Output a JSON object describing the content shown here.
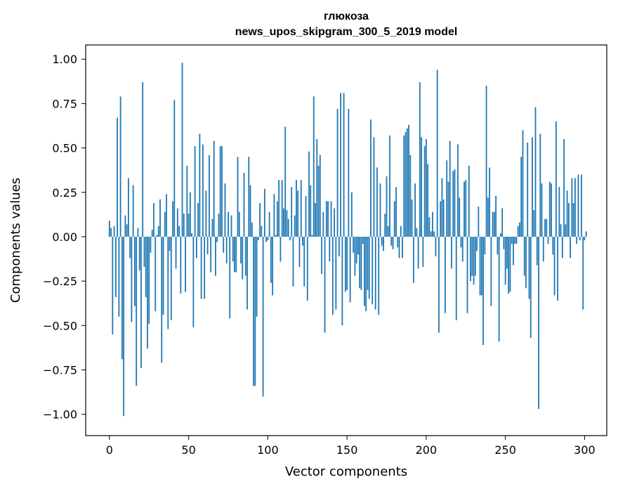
{
  "chart_data": {
    "type": "bar",
    "title": "глюкоза",
    "subtitle": "news_upos_skipgram_300_5_2019 model",
    "xlabel": "Vector components",
    "ylabel": "Components values",
    "xlim": [
      -15,
      314
    ],
    "ylim": [
      -1.12,
      1.08
    ],
    "xticks": [
      0,
      50,
      100,
      150,
      200,
      250,
      300
    ],
    "xtick_labels": [
      "0",
      "50",
      "100",
      "150",
      "200",
      "250",
      "300"
    ],
    "yticks": [
      -1.0,
      -0.75,
      -0.5,
      -0.25,
      0.0,
      0.25,
      0.5,
      0.75,
      1.0
    ],
    "ytick_labels": [
      "−1.00",
      "−0.75",
      "−0.50",
      "−0.25",
      "0.00",
      "0.25",
      "0.50",
      "0.75",
      "1.00"
    ],
    "grid": false,
    "bar_color": "#1f77b4",
    "values": [
      0.09,
      0.05,
      -0.55,
      0.06,
      -0.34,
      0.67,
      -0.45,
      0.79,
      -0.69,
      -1.01,
      0.12,
      0.07,
      0.33,
      -0.12,
      -0.48,
      0.29,
      -0.39,
      -0.84,
      0.05,
      -0.19,
      -0.74,
      0.87,
      -0.17,
      -0.34,
      -0.63,
      -0.49,
      -0.09,
      0.04,
      0.19,
      -0.42,
      0.01,
      0.06,
      0.21,
      -0.71,
      -0.44,
      0.14,
      0.24,
      -0.52,
      -0.08,
      -0.47,
      0.2,
      0.77,
      -0.18,
      0.16,
      0.06,
      -0.32,
      0.98,
      0.13,
      -0.31,
      0.4,
      0.13,
      0.25,
      0.02,
      -0.51,
      0.51,
      -0.12,
      0.19,
      0.58,
      -0.35,
      0.52,
      -0.35,
      0.26,
      -0.1,
      0.46,
      -0.2,
      0.1,
      0.54,
      -0.22,
      -0.03,
      0.13,
      0.51,
      0.51,
      -0.09,
      0.3,
      -0.15,
      0.14,
      -0.46,
      0.12,
      -0.14,
      -0.2,
      -0.2,
      0.45,
      0.14,
      -0.15,
      -0.24,
      0.36,
      -0.22,
      -0.41,
      0.45,
      0.29,
      0.08,
      -0.84,
      -0.84,
      -0.45,
      -0.02,
      0.19,
      0.06,
      -0.9,
      0.27,
      -0.03,
      -0.02,
      0.14,
      -0.26,
      -0.33,
      0.24,
      0.01,
      0.2,
      0.32,
      -0.14,
      0.32,
      0.16,
      0.62,
      0.15,
      0.1,
      -0.02,
      0.28,
      -0.28,
      0.12,
      0.32,
      0.26,
      -0.17,
      0.32,
      -0.05,
      -0.28,
      0.23,
      -0.36,
      0.48,
      0.29,
      0.01,
      0.79,
      0.19,
      0.55,
      0.4,
      0.46,
      -0.21,
      0.14,
      -0.54,
      0.2,
      0.2,
      -0.14,
      0.2,
      -0.44,
      0.16,
      -0.41,
      0.72,
      -0.11,
      0.81,
      -0.5,
      0.81,
      -0.31,
      -0.3,
      0.72,
      -0.37,
      0.25,
      -0.09,
      -0.22,
      -0.15,
      -0.1,
      -0.29,
      -0.3,
      -0.04,
      -0.39,
      -0.42,
      -0.3,
      -0.35,
      0.66,
      -0.38,
      0.56,
      -0.41,
      0.39,
      -0.44,
      0.3,
      -0.05,
      -0.08,
      0.13,
      0.34,
      0.06,
      0.57,
      -0.05,
      -0.07,
      0.2,
      0.28,
      -0.06,
      -0.12,
      0.06,
      -0.12,
      0.57,
      0.59,
      0.61,
      0.63,
      0.46,
      0.21,
      -0.26,
      0.3,
      0.05,
      -0.18,
      0.87,
      0.56,
      -0.17,
      0.51,
      0.55,
      0.41,
      0.11,
      0.03,
      0.14,
      0.03,
      -0.11,
      0.94,
      -0.54,
      0.2,
      0.33,
      0.21,
      -0.43,
      0.43,
      0.31,
      0.54,
      -0.18,
      0.37,
      0.38,
      -0.47,
      0.52,
      0.22,
      -0.06,
      -0.14,
      0.31,
      0.32,
      -0.43,
      0.4,
      -0.25,
      -0.22,
      -0.27,
      -0.22,
      -0.08,
      0.17,
      -0.33,
      -0.33,
      -0.61,
      -0.1,
      0.85,
      0.22,
      0.39,
      -0.39,
      0.14,
      0.14,
      0.23,
      -0.1,
      -0.59,
      0.02,
      0.16,
      -0.07,
      -0.27,
      -0.18,
      -0.32,
      -0.31,
      -0.04,
      -0.16,
      -0.04,
      -0.04,
      0.06,
      0.08,
      0.45,
      0.6,
      -0.22,
      -0.29,
      0.53,
      -0.35,
      -0.57,
      0.56,
      0.15,
      0.73,
      -0.16,
      -0.97,
      0.58,
      0.3,
      -0.14,
      0.1,
      0.1,
      -0.04,
      0.31,
      0.3,
      -0.1,
      -0.33,
      0.65,
      -0.36,
      0.28,
      0.07,
      -0.12,
      0.55,
      0.07,
      0.26,
      0.19,
      -0.12,
      0.33,
      0.19,
      0.33,
      -0.04,
      0.35,
      -0.02,
      0.35,
      -0.41,
      -0.02,
      0.03
    ]
  }
}
